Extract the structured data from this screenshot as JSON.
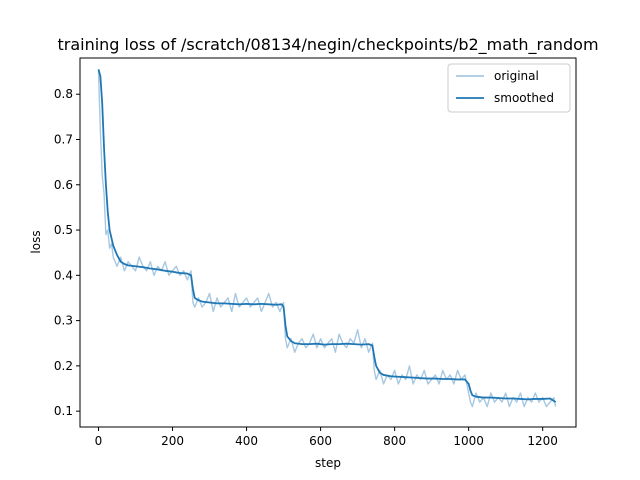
{
  "chart_data": {
    "type": "line",
    "title": "training loss of /scratch/08134/negin/checkpoints/b2_math_random",
    "xlabel": "step",
    "ylabel": "loss",
    "xlim": [
      -50,
      1290
    ],
    "ylim": [
      0.065,
      0.88
    ],
    "xticks": [
      0,
      200,
      400,
      600,
      800,
      1000,
      1200
    ],
    "yticks": [
      0.1,
      0.2,
      0.3,
      0.4,
      0.5,
      0.6,
      0.7,
      0.8
    ],
    "grid": false,
    "legend_position": "top-right",
    "colors": {
      "original": "#a6c8e2",
      "smoothed": "#1f77b4"
    },
    "series": [
      {
        "name": "original",
        "x": [
          0,
          5,
          10,
          15,
          20,
          25,
          30,
          35,
          40,
          45,
          50,
          60,
          70,
          80,
          90,
          100,
          110,
          120,
          130,
          140,
          150,
          160,
          170,
          180,
          190,
          200,
          210,
          220,
          230,
          240,
          250,
          255,
          260,
          270,
          280,
          290,
          300,
          310,
          320,
          330,
          340,
          350,
          360,
          370,
          380,
          390,
          400,
          410,
          420,
          430,
          440,
          450,
          460,
          470,
          480,
          490,
          500,
          505,
          510,
          520,
          530,
          540,
          550,
          560,
          570,
          580,
          590,
          600,
          610,
          620,
          630,
          640,
          650,
          660,
          670,
          680,
          690,
          700,
          710,
          720,
          730,
          740,
          745,
          750,
          760,
          770,
          780,
          790,
          800,
          810,
          820,
          830,
          840,
          850,
          860,
          870,
          880,
          890,
          900,
          910,
          920,
          930,
          940,
          950,
          960,
          970,
          980,
          990,
          1000,
          1005,
          1010,
          1020,
          1030,
          1040,
          1050,
          1060,
          1070,
          1080,
          1090,
          1100,
          1110,
          1120,
          1130,
          1140,
          1150,
          1160,
          1170,
          1180,
          1190,
          1200,
          1210,
          1220,
          1230,
          1235
        ],
        "values": [
          0.85,
          0.72,
          0.62,
          0.58,
          0.49,
          0.5,
          0.46,
          0.47,
          0.44,
          0.43,
          0.42,
          0.44,
          0.41,
          0.43,
          0.42,
          0.41,
          0.44,
          0.42,
          0.41,
          0.43,
          0.4,
          0.42,
          0.41,
          0.43,
          0.4,
          0.41,
          0.42,
          0.4,
          0.41,
          0.39,
          0.41,
          0.34,
          0.33,
          0.35,
          0.33,
          0.34,
          0.36,
          0.32,
          0.35,
          0.33,
          0.34,
          0.35,
          0.32,
          0.36,
          0.33,
          0.34,
          0.35,
          0.33,
          0.34,
          0.35,
          0.32,
          0.34,
          0.36,
          0.33,
          0.34,
          0.32,
          0.34,
          0.26,
          0.24,
          0.26,
          0.23,
          0.25,
          0.26,
          0.24,
          0.25,
          0.27,
          0.24,
          0.26,
          0.24,
          0.25,
          0.26,
          0.23,
          0.27,
          0.25,
          0.24,
          0.26,
          0.25,
          0.28,
          0.24,
          0.26,
          0.23,
          0.25,
          0.19,
          0.17,
          0.19,
          0.16,
          0.18,
          0.17,
          0.19,
          0.16,
          0.18,
          0.17,
          0.2,
          0.16,
          0.18,
          0.17,
          0.19,
          0.16,
          0.17,
          0.18,
          0.16,
          0.19,
          0.17,
          0.18,
          0.16,
          0.19,
          0.17,
          0.18,
          0.14,
          0.12,
          0.11,
          0.14,
          0.12,
          0.13,
          0.11,
          0.14,
          0.12,
          0.13,
          0.12,
          0.14,
          0.11,
          0.13,
          0.12,
          0.14,
          0.11,
          0.13,
          0.12,
          0.14,
          0.12,
          0.13,
          0.11,
          0.12,
          0.13,
          0.11
        ]
      },
      {
        "name": "smoothed",
        "x": [
          0,
          5,
          10,
          15,
          20,
          25,
          30,
          40,
          50,
          60,
          70,
          80,
          100,
          120,
          140,
          160,
          180,
          200,
          220,
          240,
          250,
          255,
          260,
          270,
          280,
          300,
          320,
          340,
          360,
          380,
          400,
          420,
          440,
          460,
          480,
          495,
          500,
          505,
          510,
          520,
          530,
          550,
          570,
          590,
          610,
          630,
          650,
          670,
          690,
          710,
          730,
          740,
          745,
          750,
          760,
          770,
          790,
          810,
          830,
          850,
          870,
          890,
          910,
          930,
          950,
          970,
          990,
          1000,
          1005,
          1010,
          1020,
          1040,
          1060,
          1080,
          1100,
          1120,
          1140,
          1160,
          1180,
          1200,
          1220,
          1235
        ],
        "values": [
          0.855,
          0.84,
          0.78,
          0.68,
          0.6,
          0.54,
          0.5,
          0.465,
          0.445,
          0.43,
          0.425,
          0.422,
          0.42,
          0.418,
          0.415,
          0.413,
          0.41,
          0.408,
          0.405,
          0.404,
          0.4,
          0.37,
          0.35,
          0.345,
          0.342,
          0.34,
          0.338,
          0.338,
          0.337,
          0.336,
          0.337,
          0.336,
          0.337,
          0.336,
          0.335,
          0.336,
          0.33,
          0.29,
          0.265,
          0.255,
          0.25,
          0.248,
          0.248,
          0.249,
          0.247,
          0.248,
          0.248,
          0.249,
          0.248,
          0.247,
          0.248,
          0.245,
          0.22,
          0.2,
          0.185,
          0.18,
          0.177,
          0.176,
          0.175,
          0.174,
          0.173,
          0.172,
          0.172,
          0.171,
          0.171,
          0.17,
          0.17,
          0.16,
          0.145,
          0.135,
          0.132,
          0.13,
          0.13,
          0.129,
          0.128,
          0.128,
          0.127,
          0.126,
          0.127,
          0.127,
          0.128,
          0.12
        ]
      }
    ]
  }
}
